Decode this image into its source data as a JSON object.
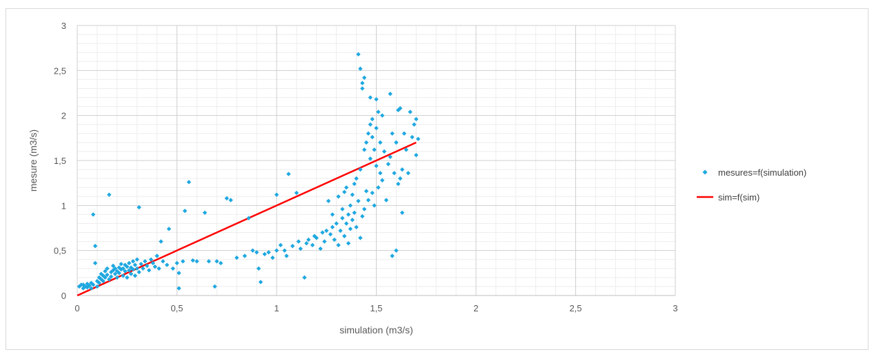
{
  "chart_data": {
    "type": "scatter",
    "xlabel": "simulation (m3/s)",
    "ylabel": "mesure  (m3/s)",
    "xlim": [
      0,
      3
    ],
    "ylim": [
      0,
      3
    ],
    "x_ticks": [
      "0",
      "0,5",
      "1",
      "1,5",
      "2",
      "2,5",
      "3"
    ],
    "y_ticks": [
      "0",
      "0,5",
      "1",
      "1,5",
      "2",
      "2,5",
      "3"
    ],
    "grid": "major and minor",
    "legend_position": "right",
    "series": [
      {
        "name": "mesures=f(simulation)",
        "kind": "scatter",
        "color": "#1fa8e0",
        "points": [
          [
            0.01,
            0.1
          ],
          [
            0.02,
            0.12
          ],
          [
            0.03,
            0.08
          ],
          [
            0.03,
            0.12
          ],
          [
            0.04,
            0.1
          ],
          [
            0.05,
            0.13
          ],
          [
            0.05,
            0.09
          ],
          [
            0.06,
            0.11
          ],
          [
            0.07,
            0.14
          ],
          [
            0.07,
            0.08
          ],
          [
            0.08,
            0.12
          ],
          [
            0.08,
            0.9
          ],
          [
            0.09,
            0.55
          ],
          [
            0.09,
            0.36
          ],
          [
            0.1,
            0.16
          ],
          [
            0.1,
            0.1
          ],
          [
            0.11,
            0.2
          ],
          [
            0.11,
            0.14
          ],
          [
            0.12,
            0.18
          ],
          [
            0.12,
            0.24
          ],
          [
            0.13,
            0.16
          ],
          [
            0.13,
            0.22
          ],
          [
            0.14,
            0.2
          ],
          [
            0.14,
            0.27
          ],
          [
            0.15,
            0.23
          ],
          [
            0.15,
            0.3
          ],
          [
            0.16,
            1.12
          ],
          [
            0.16,
            0.18
          ],
          [
            0.17,
            0.26
          ],
          [
            0.17,
            0.21
          ],
          [
            0.18,
            0.28
          ],
          [
            0.18,
            0.33
          ],
          [
            0.19,
            0.24
          ],
          [
            0.19,
            0.3
          ],
          [
            0.2,
            0.2
          ],
          [
            0.2,
            0.27
          ],
          [
            0.21,
            0.31
          ],
          [
            0.21,
            0.25
          ],
          [
            0.22,
            0.29
          ],
          [
            0.22,
            0.35
          ],
          [
            0.23,
            0.22
          ],
          [
            0.23,
            0.3
          ],
          [
            0.24,
            0.27
          ],
          [
            0.24,
            0.34
          ],
          [
            0.25,
            0.2
          ],
          [
            0.25,
            0.32
          ],
          [
            0.26,
            0.28
          ],
          [
            0.26,
            0.36
          ],
          [
            0.27,
            0.24
          ],
          [
            0.27,
            0.31
          ],
          [
            0.28,
            0.38
          ],
          [
            0.28,
            0.29
          ],
          [
            0.29,
            0.22
          ],
          [
            0.29,
            0.34
          ],
          [
            0.3,
            0.3
          ],
          [
            0.3,
            0.4
          ],
          [
            0.31,
            0.98
          ],
          [
            0.31,
            0.26
          ],
          [
            0.32,
            0.35
          ],
          [
            0.33,
            0.3
          ],
          [
            0.34,
            0.38
          ],
          [
            0.35,
            0.33
          ],
          [
            0.36,
            0.28
          ],
          [
            0.37,
            0.4
          ],
          [
            0.38,
            0.36
          ],
          [
            0.39,
            0.32
          ],
          [
            0.4,
            0.44
          ],
          [
            0.41,
            0.3
          ],
          [
            0.42,
            0.6
          ],
          [
            0.43,
            0.38
          ],
          [
            0.45,
            0.34
          ],
          [
            0.46,
            0.74
          ],
          [
            0.48,
            0.3
          ],
          [
            0.5,
            0.36
          ],
          [
            0.51,
            0.25
          ],
          [
            0.51,
            0.08
          ],
          [
            0.53,
            0.38
          ],
          [
            0.54,
            0.94
          ],
          [
            0.56,
            1.26
          ],
          [
            0.58,
            0.39
          ],
          [
            0.6,
            0.38
          ],
          [
            0.64,
            0.92
          ],
          [
            0.66,
            0.38
          ],
          [
            0.69,
            0.1
          ],
          [
            0.7,
            0.38
          ],
          [
            0.72,
            0.36
          ],
          [
            0.75,
            1.08
          ],
          [
            0.77,
            1.06
          ],
          [
            0.8,
            0.42
          ],
          [
            0.84,
            0.44
          ],
          [
            0.86,
            0.86
          ],
          [
            0.88,
            0.5
          ],
          [
            0.9,
            0.48
          ],
          [
            0.91,
            0.3
          ],
          [
            0.92,
            0.15
          ],
          [
            0.94,
            0.46
          ],
          [
            0.96,
            0.48
          ],
          [
            0.98,
            0.42
          ],
          [
            1.0,
            1.12
          ],
          [
            1.0,
            0.5
          ],
          [
            1.02,
            0.56
          ],
          [
            1.04,
            0.5
          ],
          [
            1.05,
            0.44
          ],
          [
            1.06,
            1.35
          ],
          [
            1.08,
            0.55
          ],
          [
            1.1,
            1.14
          ],
          [
            1.11,
            0.6
          ],
          [
            1.12,
            0.52
          ],
          [
            1.14,
            0.2
          ],
          [
            1.15,
            0.58
          ],
          [
            1.16,
            0.62
          ],
          [
            1.18,
            0.56
          ],
          [
            1.19,
            0.66
          ],
          [
            1.2,
            0.64
          ],
          [
            1.22,
            0.52
          ],
          [
            1.23,
            0.7
          ],
          [
            1.24,
            0.6
          ],
          [
            1.25,
            0.72
          ],
          [
            1.26,
            1.05
          ],
          [
            1.27,
            0.68
          ],
          [
            1.28,
            0.76
          ],
          [
            1.28,
            0.9
          ],
          [
            1.29,
            0.62
          ],
          [
            1.3,
            0.8
          ],
          [
            1.31,
            0.56
          ],
          [
            1.31,
            1.1
          ],
          [
            1.32,
            0.72
          ],
          [
            1.33,
            0.86
          ],
          [
            1.33,
            0.96
          ],
          [
            1.34,
            0.66
          ],
          [
            1.34,
            1.15
          ],
          [
            1.35,
            0.8
          ],
          [
            1.35,
            1.2
          ],
          [
            1.36,
            0.9
          ],
          [
            1.36,
            0.58
          ],
          [
            1.37,
            1.0
          ],
          [
            1.37,
            0.74
          ],
          [
            1.38,
            0.84
          ],
          [
            1.38,
            1.12
          ],
          [
            1.39,
            0.92
          ],
          [
            1.39,
            1.24
          ],
          [
            1.4,
            0.76
          ],
          [
            1.4,
            1.3
          ],
          [
            1.41,
            2.68
          ],
          [
            1.41,
            1.05
          ],
          [
            1.42,
            0.64
          ],
          [
            1.42,
            2.52
          ],
          [
            1.42,
            1.4
          ],
          [
            1.43,
            2.36
          ],
          [
            1.43,
            0.88
          ],
          [
            1.43,
            2.3
          ],
          [
            1.44,
            2.42
          ],
          [
            1.44,
            1.62
          ],
          [
            1.44,
            0.96
          ],
          [
            1.45,
            1.7
          ],
          [
            1.45,
            1.16
          ],
          [
            1.46,
            1.8
          ],
          [
            1.46,
            1.06
          ],
          [
            1.47,
            1.52
          ],
          [
            1.47,
            1.9
          ],
          [
            1.47,
            2.2
          ],
          [
            1.48,
            1.76
          ],
          [
            1.48,
            1.14
          ],
          [
            1.48,
            1.96
          ],
          [
            1.49,
            1.62
          ],
          [
            1.49,
            1.0
          ],
          [
            1.5,
            2.18
          ],
          [
            1.5,
            1.86
          ],
          [
            1.5,
            1.44
          ],
          [
            1.51,
            1.2
          ],
          [
            1.51,
            2.04
          ],
          [
            1.52,
            1.7
          ],
          [
            1.52,
            1.36
          ],
          [
            1.53,
            2.0
          ],
          [
            1.53,
            1.28
          ],
          [
            1.54,
            1.6
          ],
          [
            1.55,
            1.06
          ],
          [
            1.56,
            1.46
          ],
          [
            1.57,
            2.24
          ],
          [
            1.57,
            1.54
          ],
          [
            1.58,
            1.8
          ],
          [
            1.58,
            0.44
          ],
          [
            1.59,
            1.36
          ],
          [
            1.6,
            0.5
          ],
          [
            1.6,
            1.7
          ],
          [
            1.61,
            2.06
          ],
          [
            1.61,
            1.24
          ],
          [
            1.62,
            2.08
          ],
          [
            1.62,
            1.3
          ],
          [
            1.63,
            0.92
          ],
          [
            1.63,
            1.4
          ],
          [
            1.64,
            1.8
          ],
          [
            1.65,
            1.62
          ],
          [
            1.66,
            1.36
          ],
          [
            1.67,
            2.04
          ],
          [
            1.68,
            1.76
          ],
          [
            1.69,
            1.9
          ],
          [
            1.7,
            1.56
          ],
          [
            1.7,
            1.96
          ],
          [
            1.71,
            1.74
          ]
        ]
      },
      {
        "name": "sim=f(sim)",
        "kind": "line",
        "color": "#ff0000",
        "points": [
          [
            0.0,
            0.0
          ],
          [
            1.7,
            1.7
          ]
        ]
      }
    ]
  }
}
